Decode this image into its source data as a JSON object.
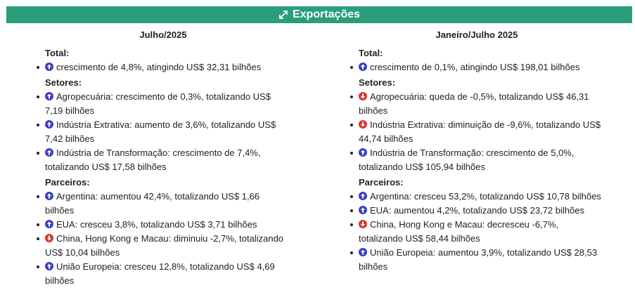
{
  "header": {
    "title": "Exportações",
    "icon": "expand-icon",
    "color": "#2a9d7c"
  },
  "columns": [
    {
      "title": "Julho/2025",
      "sections": [
        {
          "label": "Total:",
          "items": [
            {
              "dir": "up",
              "text": "crescimento de 4,8%, atingindo US$ 32,31 bilhões",
              "lines": [
                "crescimento de 4,8%, atingindo US$ 32,31 bilhões"
              ]
            }
          ]
        },
        {
          "label": "Setores:",
          "items": [
            {
              "dir": "up",
              "lines": [
                "Agropecuária: crescimento de 0,3%, totalizando US$",
                "7,19 bilhões"
              ]
            },
            {
              "dir": "up",
              "lines": [
                "Indústria Extrativa: aumento de 3,6%, totalizando US$",
                "7,42 bilhões"
              ]
            },
            {
              "dir": "up",
              "lines": [
                "Indústria de Transformação: crescimento de 7,4%,",
                "totalizando US$ 17,58 bilhões"
              ]
            }
          ]
        },
        {
          "label": "Parceiros:",
          "items": [
            {
              "dir": "up",
              "lines": [
                "Argentina: aumentou 42,4%, totalizando US$ 1,66",
                "bilhões"
              ]
            },
            {
              "dir": "up",
              "lines": [
                "EUA: cresceu 3,8%, totalizando US$ 3,71 bilhões"
              ]
            },
            {
              "dir": "down",
              "lines": [
                "China, Hong Kong e Macau: diminuiu -2,7%, totalizando",
                "US$ 10,04 bilhões"
              ]
            },
            {
              "dir": "up",
              "lines": [
                "União Europeia: cresceu 12,8%, totalizando US$ 4,69",
                "bilhões"
              ]
            }
          ]
        }
      ]
    },
    {
      "title": "Janeiro/Julho 2025",
      "sections": [
        {
          "label": "Total:",
          "items": [
            {
              "dir": "up",
              "lines": [
                "crescimento de 0,1%, atingindo US$ 198,01 bilhões"
              ]
            }
          ]
        },
        {
          "label": "Setores:",
          "items": [
            {
              "dir": "down",
              "lines": [
                "Agropecuária: queda de -0,5%, totalizando US$ 46,31",
                "bilhões"
              ]
            },
            {
              "dir": "down",
              "lines": [
                "Indústria Extrativa: diminuição de -9,6%, totalizando US$",
                "44,74 bilhões"
              ]
            },
            {
              "dir": "up",
              "lines": [
                "Indústria de Transformação: crescimento de 5,0%,",
                "totalizando US$ 105,94 bilhões"
              ]
            }
          ]
        },
        {
          "label": "Parceiros:",
          "items": [
            {
              "dir": "up",
              "lines": [
                "Argentina: cresceu 53,2%, totalizando US$ 10,78 bilhões"
              ]
            },
            {
              "dir": "up",
              "lines": [
                "EUA: aumentou 4,2%, totalizando US$ 23,72 bilhões"
              ]
            },
            {
              "dir": "down",
              "lines": [
                "China, Hong Kong e Macau: decresceu -6,7%,",
                "totalizando US$ 58,44 bilhões"
              ]
            },
            {
              "dir": "up",
              "lines": [
                "União Europeia: aumentou 3,9%, totalizando US$ 28,53",
                "bilhões"
              ]
            }
          ]
        }
      ]
    }
  ],
  "icons": {
    "up": "arrow-up-circle-icon",
    "down": "arrow-down-circle-icon"
  },
  "colors": {
    "up": "#3a3fc4",
    "down": "#d9352c"
  }
}
